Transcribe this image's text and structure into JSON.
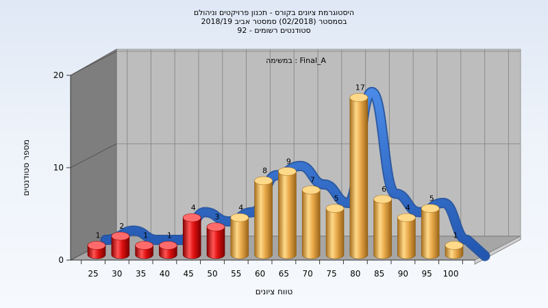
{
  "chart_data": {
    "type": "bar",
    "title": [
      "היסטוגרמת ציונים בקורס - תכנון פרויקטים וניהולם",
      "בסמסטר  (02/2018)  סמסטר אביב 2018/19",
      "סטודנטים רשומים - 92"
    ],
    "inner_label": "במשימה : Final_A",
    "xlabel": "טווח ציונים",
    "ylabel": "מספר סטודנטים",
    "ylim": [
      0,
      20
    ],
    "yticks": [
      0,
      10,
      20
    ],
    "categories": [
      "25",
      "30",
      "35",
      "40",
      "45",
      "50",
      "55",
      "60",
      "65",
      "70",
      "75",
      "80",
      "85",
      "90",
      "95",
      "100"
    ],
    "values": [
      1,
      2,
      1,
      1,
      4,
      3,
      4,
      8,
      9,
      7,
      5,
      17,
      6,
      4,
      5,
      1
    ],
    "failing_threshold": 55,
    "colors": {
      "fail": "#e01010",
      "pass": "#e8a94a",
      "curve": "#2f6fcf"
    },
    "grid": true
  }
}
